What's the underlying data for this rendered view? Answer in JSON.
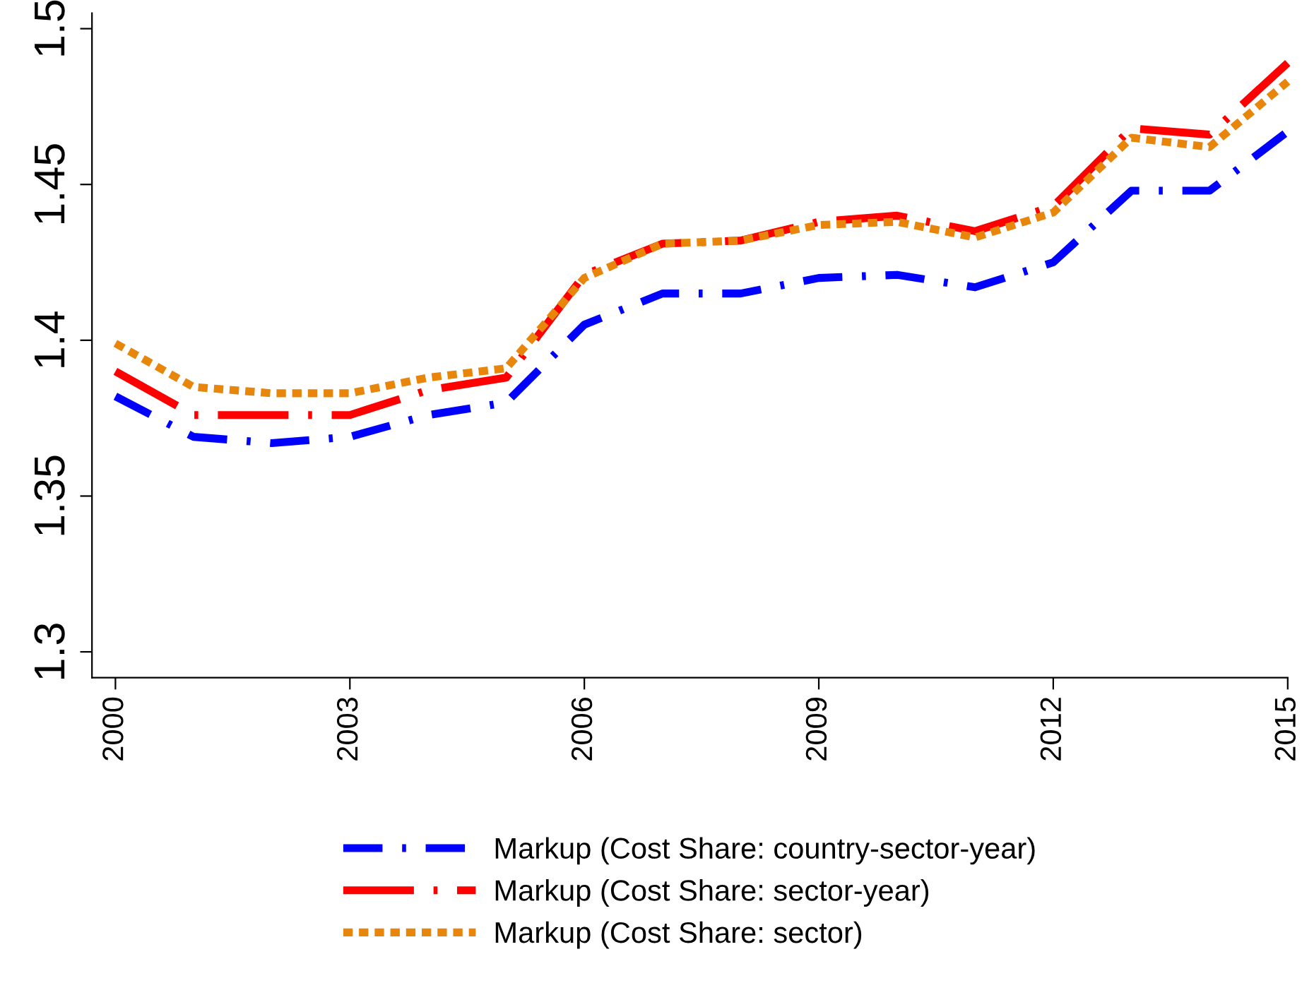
{
  "chart_data": {
    "type": "line",
    "x": [
      2000,
      2001,
      2002,
      2003,
      2004,
      2005,
      2006,
      2007,
      2008,
      2009,
      2010,
      2011,
      2012,
      2013,
      2014,
      2015
    ],
    "xlim": [
      1999.7,
      2015
    ],
    "xticks": [
      2000,
      2003,
      2006,
      2009,
      2012,
      2015
    ],
    "ylim": [
      1.2917,
      1.505
    ],
    "yticks": [
      1.3,
      1.35,
      1.4,
      1.45,
      1.5
    ],
    "grid": false,
    "legend": "bottom",
    "marker": "none",
    "series": [
      {
        "name": "Markup (Cost Share: country-sector-year)",
        "color": "#0000ff",
        "line_style": "dashdot",
        "values": [
          1.382,
          1.369,
          1.367,
          1.369,
          1.376,
          1.38,
          1.405,
          1.415,
          1.415,
          1.42,
          1.421,
          1.417,
          1.425,
          1.448,
          1.448,
          1.467
        ]
      },
      {
        "name": "Markup (Cost Share: sector-year)",
        "color": "#ff0000",
        "line_style": "longdashdot",
        "values": [
          1.39,
          1.376,
          1.376,
          1.376,
          1.384,
          1.388,
          1.421,
          1.431,
          1.432,
          1.438,
          1.44,
          1.435,
          1.443,
          1.468,
          1.466,
          1.489
        ]
      },
      {
        "name": "Markup (Cost Share: sector)",
        "color": "#e8860c",
        "line_style": "dotted",
        "values": [
          1.399,
          1.385,
          1.383,
          1.383,
          1.388,
          1.391,
          1.42,
          1.431,
          1.432,
          1.437,
          1.438,
          1.433,
          1.441,
          1.465,
          1.462,
          1.483
        ]
      }
    ]
  }
}
